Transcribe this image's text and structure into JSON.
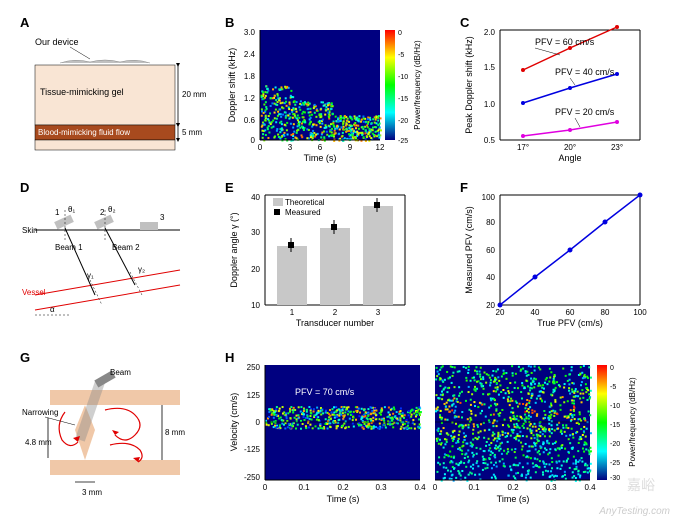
{
  "panelA": {
    "label": "A",
    "device_label": "Our device",
    "gel_label": "Tissue-mimicking gel",
    "fluid_label": "Blood-mimicking fluid flow",
    "gel_depth": "20 mm",
    "fluid_depth": "5 mm",
    "gel_color": "#f9e5d4",
    "fluid_color": "#a84a1e",
    "device_color": "#b8b8b8"
  },
  "panelB": {
    "label": "B",
    "xlabel": "Time (s)",
    "ylabel": "Doppler shift (kHz)",
    "cbar_label": "Power/frequency (dB/Hz)",
    "xticks": [
      0,
      3,
      6,
      9,
      12
    ],
    "yticks": [
      0,
      0.6,
      1.2,
      1.8,
      2.4,
      3.0
    ],
    "cbar_ticks": [
      0,
      -5,
      -10,
      -15,
      -20,
      -25
    ],
    "bg_color": "#000080"
  },
  "panelC": {
    "label": "C",
    "xlabel": "Angle",
    "ylabel": "Peak Doppler shift (kHz)",
    "xticks": [
      "17°",
      "20°",
      "23°"
    ],
    "yticks": [
      0.5,
      1.0,
      1.5,
      2.0
    ],
    "series": [
      {
        "label": "PFV = 60 cm/s",
        "color": "#e00000",
        "values": [
          1.45,
          1.75,
          2.05
        ]
      },
      {
        "label": "PFV = 40 cm/s",
        "color": "#0000e0",
        "values": [
          1.0,
          1.2,
          1.4
        ]
      },
      {
        "label": "PFV = 20 cm/s",
        "color": "#e000e0",
        "values": [
          0.55,
          0.63,
          0.75
        ]
      }
    ]
  },
  "panelD": {
    "label": "D",
    "skin_label": "Skin",
    "vessel_label": "Vessel",
    "beam1_label": "Beam 1",
    "beam2_label": "Beam 2",
    "theta1": "θ₁",
    "theta2": "θ₂",
    "gamma1": "γ₁",
    "gamma2": "γ₂",
    "alpha": "α",
    "transducer_nums": [
      "1",
      "2",
      "3"
    ],
    "vessel_color": "#e00000",
    "transducer_color": "#c0c0c0"
  },
  "panelE": {
    "label": "E",
    "xlabel": "Transducer number",
    "ylabel": "Doppler angle γ (°)",
    "xticks": [
      "1",
      "2",
      "3"
    ],
    "yticks": [
      10,
      20,
      30,
      40
    ],
    "legend_theo": "Theoretical",
    "legend_meas": "Measured",
    "bar_color": "#c8c8c8",
    "values": [
      26,
      31,
      37
    ]
  },
  "panelF": {
    "label": "F",
    "xlabel": "True PFV (cm/s)",
    "ylabel": "Measured PFV (cm/s)",
    "xticks": [
      20,
      40,
      60,
      80,
      100
    ],
    "yticks": [
      20,
      40,
      60,
      80,
      100
    ],
    "line_color": "#0000e0",
    "values": [
      [
        20,
        20
      ],
      [
        40,
        40
      ],
      [
        60,
        60
      ],
      [
        80,
        80
      ],
      [
        100,
        100
      ]
    ]
  },
  "panelG": {
    "label": "G",
    "beam_label": "Beam",
    "narrowing_label": "Narrowing",
    "dim_48": "4.8 mm",
    "dim_8": "8 mm",
    "dim_3": "3 mm",
    "vessel_color": "#f0c8a8",
    "flow_color": "#e00000",
    "transducer_color": "#888888"
  },
  "panelH": {
    "label": "H",
    "xlabel": "Time (s)",
    "ylabel": "Velocity (cm/s)",
    "cbar_label": "Power/frequency (dB/Hz)",
    "pfv_label": "PFV = 70 cm/s",
    "xticks": [
      0,
      0.1,
      0.2,
      0.3,
      0.4
    ],
    "yticks": [
      -250,
      -125,
      0,
      125,
      250
    ],
    "cbar_ticks": [
      0,
      -5,
      -10,
      -15,
      -20,
      -25,
      -30
    ],
    "bg_color": "#000080"
  },
  "watermark": "AnyTesting.com",
  "watermark2": "嘉峪"
}
